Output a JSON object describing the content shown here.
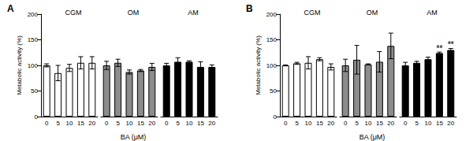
{
  "chart_data": [
    {
      "type": "bar",
      "title": "A",
      "x_label": "BA (μM)",
      "y_label": "Metabolic activity (%)",
      "categories": [
        "0",
        "5",
        "10",
        "15",
        "20"
      ],
      "ylim": [
        0,
        200
      ],
      "yticks": [
        0,
        50,
        100,
        150,
        200
      ],
      "grid": false,
      "series": [
        {
          "name": "CGM",
          "color": "#ffffff",
          "values": [
            100,
            85,
            95,
            105,
            105
          ],
          "errors": [
            3,
            15,
            7,
            12,
            12
          ]
        },
        {
          "name": "OM",
          "color": "#8c8c8c",
          "values": [
            100,
            105,
            87,
            90,
            97
          ],
          "errors": [
            8,
            7,
            4,
            2,
            7
          ]
        },
        {
          "name": "AM",
          "color": "#000000",
          "values": [
            100,
            107,
            107,
            97,
            97
          ],
          "errors": [
            4,
            8,
            2,
            10,
            4
          ]
        }
      ]
    },
    {
      "type": "bar",
      "title": "B",
      "x_label": "BA (μM)",
      "y_label": "Metabolic activity (%)",
      "categories": [
        "0",
        "5",
        "10",
        "15",
        "20"
      ],
      "ylim": [
        0,
        200
      ],
      "yticks": [
        0,
        50,
        100,
        150,
        200
      ],
      "grid": false,
      "series": [
        {
          "name": "CGM",
          "color": "#ffffff",
          "values": [
            100,
            104,
            105,
            112,
            97
          ],
          "errors": [
            1,
            2,
            12,
            3,
            6
          ]
        },
        {
          "name": "OM",
          "color": "#8c8c8c",
          "values": [
            100,
            111,
            102,
            107,
            138
          ],
          "errors": [
            12,
            28,
            1,
            20,
            25
          ]
        },
        {
          "name": "AM",
          "color": "#000000",
          "values": [
            100,
            105,
            112,
            124,
            130
          ],
          "errors": [
            6,
            3,
            4,
            2,
            3
          ]
        }
      ],
      "annotations": [
        {
          "series": "AM",
          "category": "15",
          "text": "**"
        },
        {
          "series": "AM",
          "category": "20",
          "text": "**"
        }
      ]
    }
  ]
}
